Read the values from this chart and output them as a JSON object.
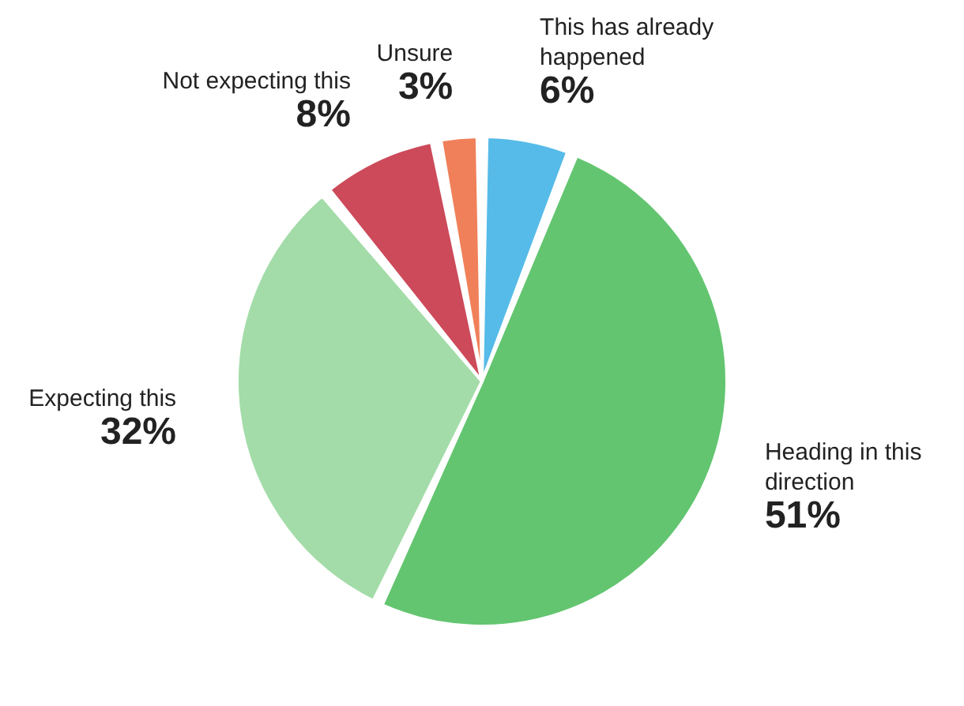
{
  "chart_data": {
    "type": "pie",
    "categories": [
      "This has already happened",
      "Heading in this direction",
      "Expecting this",
      "Not expecting this",
      "Unsure"
    ],
    "values": [
      6,
      51,
      32,
      8,
      3
    ],
    "value_labels": [
      "6%",
      "51%",
      "32%",
      "8%",
      "3%"
    ],
    "colors": [
      "#56bbe8",
      "#63c570",
      "#a3dca8",
      "#cc4a5a",
      "#f0805a"
    ],
    "legend": false
  }
}
